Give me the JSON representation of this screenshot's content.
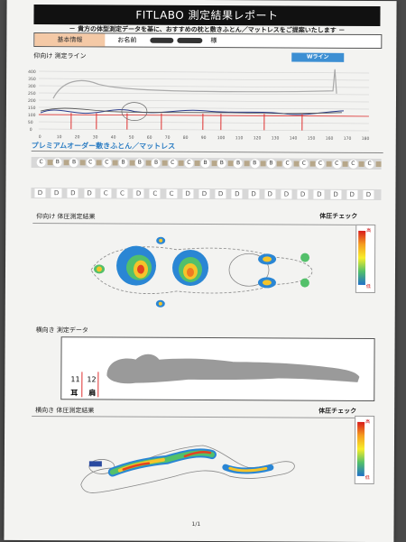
{
  "header": {
    "title": "FITLABO 測定結果レポート",
    "subtitle": "－ 貴方の体型測定データを基に、おすすめの枕と敷きふとん／マットレスをご提案いたします －"
  },
  "info": {
    "basic": "基本情報",
    "name_label": "お名前",
    "honorific": "様"
  },
  "section1": {
    "label": "仰向け 測定ライン",
    "w_line": "Wライン",
    "y_ticks": [
      "400",
      "350",
      "300",
      "250",
      "200",
      "150",
      "100",
      "50",
      "0"
    ],
    "x_ticks": [
      "0",
      "10",
      "20",
      "30",
      "40",
      "50",
      "60",
      "70",
      "80",
      "90",
      "100",
      "110",
      "120",
      "130",
      "140",
      "150",
      "160",
      "170",
      "180"
    ]
  },
  "premium": {
    "title": "プレミアムオーダー敷きふとん／マットレス",
    "row1": [
      "C",
      "B",
      "B",
      "C",
      "C",
      "B",
      "B",
      "B",
      "C",
      "C",
      "B",
      "B",
      "B",
      "B",
      "B",
      "C",
      "C",
      "C",
      "C",
      "C",
      "C"
    ],
    "row2": [
      "D",
      "D",
      "D",
      "D",
      "C",
      "C",
      "D",
      "C",
      "C",
      "D",
      "D",
      "D",
      "D",
      "D",
      "D",
      "D",
      "D",
      "D",
      "D",
      "D",
      "D"
    ]
  },
  "supine_pressure": {
    "label": "仰向け 体圧測定結果",
    "check": "体圧チェック",
    "hi": "高",
    "lo": "低"
  },
  "side_data": {
    "label": "横向き 測定データ",
    "v1": "11",
    "v2": "12",
    "ear": "耳",
    "shoulder": "肩"
  },
  "side_pressure": {
    "label": "横向き 体圧測定結果",
    "check": "体圧チェック",
    "hi": "高",
    "lo": "低"
  },
  "footer": {
    "page": "1/1"
  }
}
